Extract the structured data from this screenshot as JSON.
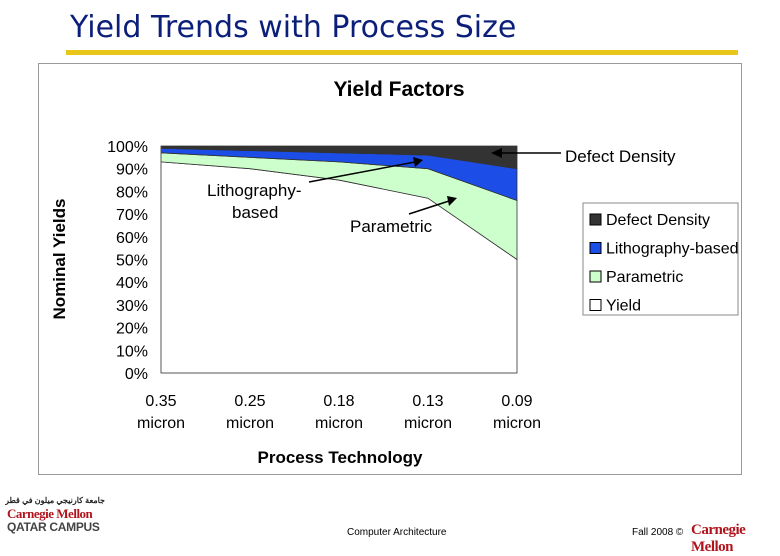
{
  "slide": {
    "title": "Yield Trends with Process Size",
    "footer_center": "Computer Architecture",
    "footer_right": "Fall 2008 ©",
    "cmu_logo_text": "Carnegie Mellon",
    "logo_arabic": "جامعة كارنيجي ميلون في قطر",
    "logo_cmu": "Carnegie Mellon",
    "logo_qatar": "QATAR CAMPUS"
  },
  "chart_data": {
    "type": "area",
    "title": "Yield Factors",
    "xlabel": "Process Technology",
    "ylabel": "Nominal Yields",
    "categories": [
      [
        "0.35",
        "micron"
      ],
      [
        "0.25",
        "micron"
      ],
      [
        "0.18",
        "micron"
      ],
      [
        "0.13",
        "micron"
      ],
      [
        "0.09",
        "micron"
      ]
    ],
    "ylim": [
      0,
      100
    ],
    "yticks": [
      "0%",
      "10%",
      "20%",
      "30%",
      "40%",
      "50%",
      "60%",
      "70%",
      "80%",
      "90%",
      "100%"
    ],
    "series": [
      {
        "name": "Yield",
        "values": [
          93,
          90,
          85,
          77,
          50
        ],
        "color": "#ffffff"
      },
      {
        "name": "Parametric",
        "values": [
          4,
          5,
          8,
          13,
          26
        ],
        "color": "#ccffcc"
      },
      {
        "name": "Lithography-based",
        "values": [
          2,
          3,
          4,
          6,
          14
        ],
        "color": "#1c4de6"
      },
      {
        "name": "Defect Density",
        "values": [
          1,
          2,
          3,
          4,
          10
        ],
        "color": "#333333"
      }
    ],
    "legend_order": [
      "Defect Density",
      "Lithography-based",
      "Parametric",
      "Yield"
    ],
    "legend_position": "right",
    "annotations": {
      "defect": "Defect Density",
      "litho_line1": "Lithography-",
      "litho_line2": "based",
      "parametric": "Parametric"
    }
  }
}
